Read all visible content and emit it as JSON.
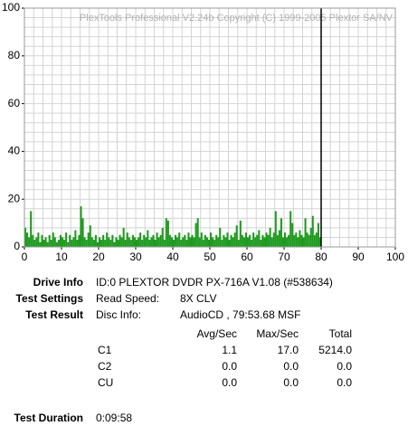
{
  "chart_data": {
    "type": "bar",
    "watermark": "PlexTools Professional V2.24b Copyright (C) 1999-2005 Plextor SA/NV",
    "x": [
      0,
      0.5,
      1,
      1.5,
      2,
      2.5,
      3,
      3.5,
      4,
      4.5,
      5,
      5.5,
      6,
      6.5,
      7,
      7.5,
      8,
      8.5,
      9,
      9.5,
      10,
      10.5,
      11,
      11.5,
      12,
      12.5,
      13,
      13.5,
      14,
      14.5,
      15,
      15.5,
      16,
      16.5,
      17,
      17.5,
      18,
      18.5,
      19,
      19.5,
      20,
      20.5,
      21,
      21.5,
      22,
      22.5,
      23,
      23.5,
      24,
      24.5,
      25,
      25.5,
      26,
      26.5,
      27,
      27.5,
      28,
      28.5,
      29,
      29.5,
      30,
      30.5,
      31,
      31.5,
      32,
      32.5,
      33,
      33.5,
      34,
      34.5,
      35,
      35.5,
      36,
      36.5,
      37,
      37.5,
      38,
      38.5,
      39,
      39.5,
      40,
      40.5,
      41,
      41.5,
      42,
      42.5,
      43,
      43.5,
      44,
      44.5,
      45,
      45.5,
      46,
      46.5,
      47,
      47.5,
      48,
      48.5,
      49,
      49.5,
      50,
      50.5,
      51,
      51.5,
      52,
      52.5,
      53,
      53.5,
      54,
      54.5,
      55,
      55.5,
      56,
      56.5,
      57,
      57.5,
      58,
      58.5,
      59,
      59.5,
      60,
      60.5,
      61,
      61.5,
      62,
      62.5,
      63,
      63.5,
      64,
      64.5,
      65,
      65.5,
      66,
      66.5,
      67,
      67.5,
      68,
      68.5,
      69,
      69.5,
      70,
      70.5,
      71,
      71.5,
      72,
      72.5,
      73,
      73.5,
      74,
      74.5,
      75,
      75.5,
      76,
      76.5,
      77,
      77.5,
      78,
      78.5,
      79,
      79.5
    ],
    "values": [
      8,
      6,
      4,
      15,
      5,
      3,
      4,
      6,
      2,
      5,
      3,
      4,
      2,
      5,
      3,
      6,
      4,
      2,
      3,
      5,
      4,
      3,
      6,
      2,
      5,
      3,
      4,
      7,
      3,
      5,
      17,
      12,
      4,
      3,
      6,
      9,
      4,
      3,
      5,
      2,
      4,
      3,
      5,
      3,
      6,
      4,
      3,
      5,
      2,
      4,
      3,
      5,
      4,
      8,
      3,
      6,
      4,
      3,
      5,
      4,
      3,
      4,
      6,
      3,
      5,
      4,
      7,
      3,
      4,
      5,
      3,
      6,
      4,
      5,
      8,
      3,
      12,
      11,
      5,
      4,
      3,
      5,
      4,
      6,
      3,
      4,
      5,
      3,
      6,
      4,
      5,
      4,
      10,
      12,
      4,
      6,
      3,
      5,
      4,
      3,
      6,
      4,
      3,
      5,
      4,
      8,
      3,
      5,
      4,
      6,
      3,
      5,
      4,
      6,
      9,
      3,
      11,
      5,
      4,
      6,
      4,
      5,
      3,
      6,
      4,
      5,
      7,
      3,
      5,
      4,
      6,
      5,
      8,
      4,
      6,
      15,
      5,
      7,
      12,
      4,
      6,
      4,
      5,
      15,
      10,
      5,
      6,
      4,
      7,
      5,
      4,
      12,
      6,
      5,
      8,
      13,
      5,
      6,
      10,
      4
    ],
    "color": "#1e9a1e",
    "end_marker": 80,
    "xlim": [
      0,
      100
    ],
    "xticks": [
      0,
      10,
      20,
      30,
      40,
      50,
      60,
      70,
      80,
      90,
      100
    ],
    "ylim": [
      0,
      100
    ],
    "yticks": [
      0,
      20,
      40,
      60,
      80,
      100
    ],
    "x_grid_step": 2.5,
    "y_grid_step": 4,
    "grid": true
  },
  "info": {
    "drive_info": {
      "label": "Drive Info",
      "value": "ID:0 PLEXTOR DVDR PX-716A V1.08 (#538634)"
    },
    "test_settings": {
      "label": "Test Settings",
      "key": "Read Speed:",
      "value": "8X CLV"
    },
    "test_result": {
      "label": "Test Result",
      "key": "Disc Info:",
      "value": "AudioCD , 79:53.68 MSF"
    },
    "table": {
      "headers": [
        "Avg/Sec",
        "Max/Sec",
        "Total"
      ],
      "rows": [
        [
          "C1",
          "1.1",
          "17.0",
          "5214.0"
        ],
        [
          "C2",
          "0.0",
          "0.0",
          "0.0"
        ],
        [
          "CU",
          "0.0",
          "0.0",
          "0.0"
        ]
      ]
    },
    "test_duration": {
      "label": "Test Duration",
      "value": "0:09:58"
    }
  }
}
